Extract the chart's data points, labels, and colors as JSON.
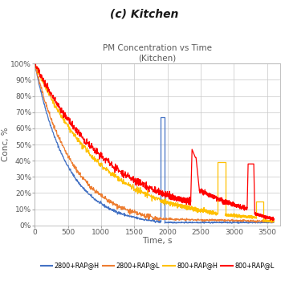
{
  "title": "(c) Kitchen",
  "subtitle": "PM Concentration vs Time\n(Kitchen)",
  "xlabel": "Time, s",
  "ylabel": "Conc, %",
  "xlim": [
    0,
    3700
  ],
  "ylim": [
    0,
    1.0
  ],
  "yticks": [
    0.0,
    0.1,
    0.2,
    0.3,
    0.4,
    0.5,
    0.6,
    0.7,
    0.8,
    0.9,
    1.0
  ],
  "ytick_labels": [
    "0%",
    "10%",
    "20%",
    "30%",
    "40%",
    "50%",
    "60%",
    "70%",
    "80%",
    "90%",
    "100%"
  ],
  "xticks": [
    0,
    500,
    1000,
    1500,
    2000,
    2500,
    3000,
    3500
  ],
  "colors": {
    "blue": "#4472C4",
    "orange": "#ED7D31",
    "yellow": "#FFC000",
    "red": "#FF0000"
  },
  "legend_labels": [
    "2800+RAP@H",
    "2800+RAP@L",
    "800+RAP@H",
    "800+RAP@L"
  ],
  "background_color": "#FFFFFF",
  "grid_color": "#C8C8C8"
}
